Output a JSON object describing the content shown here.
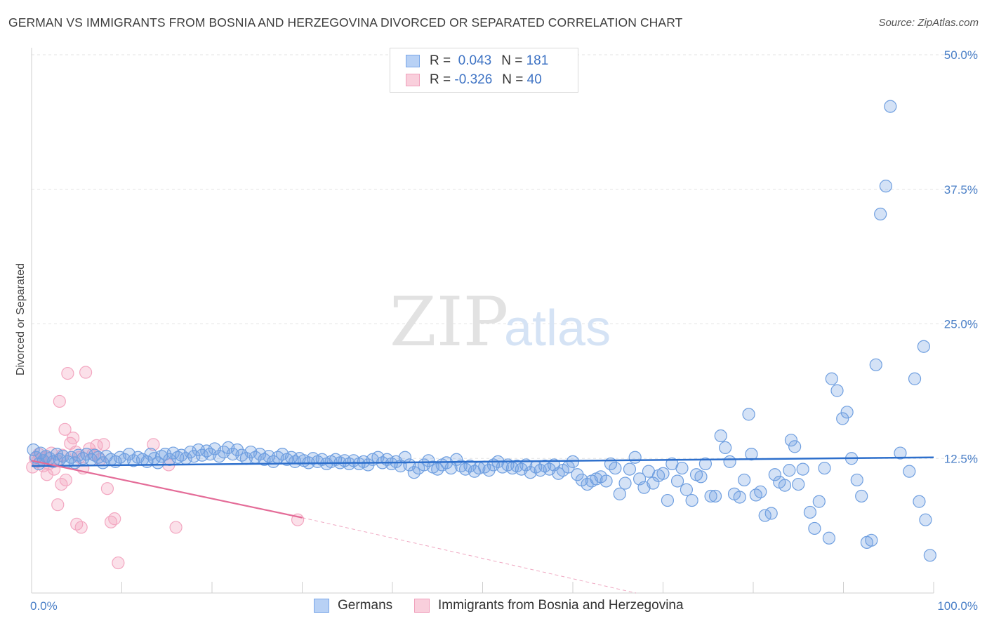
{
  "header": {
    "title": "GERMAN VS IMMIGRANTS FROM BOSNIA AND HERZEGOVINA DIVORCED OR SEPARATED CORRELATION CHART",
    "source": "Source: ZipAtlas.com"
  },
  "watermark": {
    "zip": "ZIP",
    "atlas": "atlas"
  },
  "legend": {
    "rows": [
      {
        "r_label": "R =",
        "r_value": "0.043",
        "n_label": "N =",
        "n_value": "181",
        "color": "#7aa7e8",
        "fill": "#b8d1f5"
      },
      {
        "r_label": "R =",
        "r_value": "-0.326",
        "n_label": "N =",
        "n_value": "40",
        "color": "#f0a0bc",
        "fill": "#f9cfdc"
      }
    ]
  },
  "bottom_legend": {
    "germans": "Germans",
    "bosnia": "Immigrants from Bosnia and Herzegovina"
  },
  "chart_data": {
    "type": "scatter",
    "title": "GERMAN VS IMMIGRANTS FROM BOSNIA AND HERZEGOVINA DIVORCED OR SEPARATED CORRELATION CHART",
    "xlabel": "",
    "ylabel": "Divorced or Separated",
    "xlim": [
      0,
      100
    ],
    "ylim": [
      0,
      50
    ],
    "x_tick_labels": [
      "0.0%",
      "100.0%"
    ],
    "y_ticks": [
      12.5,
      25.0,
      37.5,
      50.0
    ],
    "y_tick_labels": [
      "12.5%",
      "25.0%",
      "37.5%",
      "50.0%"
    ],
    "grid": true,
    "colors": {
      "germans": "#6f9fe0",
      "germans_line": "#2d6fcc",
      "bosnia": "#f3a7c1",
      "bosnia_line": "#e46c98"
    },
    "series": [
      {
        "name": "Germans",
        "points": [
          [
            0.2,
            13.3
          ],
          [
            0.5,
            12.6
          ],
          [
            0.8,
            12.0
          ],
          [
            1.0,
            13.0
          ],
          [
            1.3,
            12.3
          ],
          [
            1.6,
            12.7
          ],
          [
            2.0,
            12.5
          ],
          [
            2.4,
            12.2
          ],
          [
            2.8,
            12.9
          ],
          [
            3.1,
            12.4
          ],
          [
            3.5,
            12.7
          ],
          [
            4.0,
            12.2
          ],
          [
            4.4,
            12.6
          ],
          [
            4.8,
            12.1
          ],
          [
            5.2,
            12.8
          ],
          [
            5.7,
            12.5
          ],
          [
            6.1,
            12.9
          ],
          [
            6.6,
            12.4
          ],
          [
            7.0,
            12.8
          ],
          [
            7.4,
            12.6
          ],
          [
            7.9,
            12.1
          ],
          [
            8.3,
            12.7
          ],
          [
            8.8,
            12.4
          ],
          [
            9.3,
            12.2
          ],
          [
            9.8,
            12.6
          ],
          [
            10.3,
            12.4
          ],
          [
            10.8,
            12.9
          ],
          [
            11.3,
            12.3
          ],
          [
            11.8,
            12.6
          ],
          [
            12.3,
            12.4
          ],
          [
            12.8,
            12.2
          ],
          [
            13.2,
            12.9
          ],
          [
            13.6,
            12.5
          ],
          [
            14.0,
            12.1
          ],
          [
            14.4,
            12.7
          ],
          [
            14.8,
            12.9
          ],
          [
            15.3,
            12.4
          ],
          [
            15.7,
            13.0
          ],
          [
            16.2,
            12.6
          ],
          [
            16.6,
            12.8
          ],
          [
            17.1,
            12.5
          ],
          [
            17.6,
            13.1
          ],
          [
            18.0,
            12.7
          ],
          [
            18.5,
            13.3
          ],
          [
            18.9,
            12.8
          ],
          [
            19.4,
            13.2
          ],
          [
            19.8,
            12.9
          ],
          [
            20.3,
            13.4
          ],
          [
            20.8,
            12.7
          ],
          [
            21.3,
            13.1
          ],
          [
            21.8,
            13.5
          ],
          [
            22.3,
            12.9
          ],
          [
            22.8,
            13.3
          ],
          [
            23.3,
            12.8
          ],
          [
            23.8,
            12.5
          ],
          [
            24.3,
            13.1
          ],
          [
            24.8,
            12.6
          ],
          [
            25.3,
            12.9
          ],
          [
            25.8,
            12.4
          ],
          [
            26.3,
            12.7
          ],
          [
            26.8,
            12.2
          ],
          [
            27.3,
            12.6
          ],
          [
            27.8,
            12.9
          ],
          [
            28.3,
            12.4
          ],
          [
            28.8,
            12.6
          ],
          [
            29.2,
            12.2
          ],
          [
            29.7,
            12.5
          ],
          [
            30.2,
            12.3
          ],
          [
            30.7,
            12.1
          ],
          [
            31.2,
            12.5
          ],
          [
            31.7,
            12.2
          ],
          [
            32.2,
            12.4
          ],
          [
            32.7,
            12.0
          ],
          [
            33.2,
            12.2
          ],
          [
            33.7,
            12.4
          ],
          [
            34.2,
            12.1
          ],
          [
            34.7,
            12.3
          ],
          [
            35.2,
            12.0
          ],
          [
            35.7,
            12.3
          ],
          [
            36.3,
            12.0
          ],
          [
            36.8,
            12.2
          ],
          [
            37.3,
            11.9
          ],
          [
            37.8,
            12.4
          ],
          [
            38.4,
            12.6
          ],
          [
            38.9,
            12.1
          ],
          [
            39.4,
            12.4
          ],
          [
            39.9,
            12.0
          ],
          [
            40.4,
            12.2
          ],
          [
            40.9,
            11.8
          ],
          [
            41.4,
            12.6
          ],
          [
            41.9,
            11.9
          ],
          [
            42.4,
            11.2
          ],
          [
            42.9,
            11.6
          ],
          [
            43.5,
            11.9
          ],
          [
            44.0,
            12.3
          ],
          [
            44.5,
            11.7
          ],
          [
            45.0,
            11.5
          ],
          [
            45.5,
            11.9
          ],
          [
            46.0,
            12.1
          ],
          [
            46.5,
            11.6
          ],
          [
            47.1,
            12.4
          ],
          [
            47.6,
            11.8
          ],
          [
            48.1,
            11.5
          ],
          [
            48.6,
            11.8
          ],
          [
            49.1,
            11.3
          ],
          [
            49.6,
            11.6
          ],
          [
            50.2,
            11.7
          ],
          [
            50.7,
            11.4
          ],
          [
            51.2,
            11.9
          ],
          [
            51.7,
            12.2
          ],
          [
            52.2,
            11.7
          ],
          [
            52.8,
            11.9
          ],
          [
            53.3,
            11.6
          ],
          [
            53.8,
            11.8
          ],
          [
            54.3,
            11.5
          ],
          [
            54.8,
            11.9
          ],
          [
            55.3,
            11.2
          ],
          [
            55.9,
            11.7
          ],
          [
            56.4,
            11.4
          ],
          [
            56.9,
            11.8
          ],
          [
            57.4,
            11.5
          ],
          [
            57.9,
            11.9
          ],
          [
            58.4,
            11.1
          ],
          [
            58.9,
            11.4
          ],
          [
            59.5,
            11.7
          ],
          [
            60.0,
            12.2
          ],
          [
            60.5,
            11.0
          ],
          [
            61.0,
            10.5
          ],
          [
            61.6,
            10.1
          ],
          [
            62.1,
            10.4
          ],
          [
            62.6,
            10.6
          ],
          [
            63.1,
            10.8
          ],
          [
            63.7,
            10.4
          ],
          [
            64.2,
            12.0
          ],
          [
            64.7,
            11.6
          ],
          [
            65.2,
            9.2
          ],
          [
            65.8,
            10.2
          ],
          [
            66.3,
            11.5
          ],
          [
            66.9,
            12.6
          ],
          [
            67.4,
            10.6
          ],
          [
            67.9,
            9.8
          ],
          [
            68.4,
            11.3
          ],
          [
            68.9,
            10.2
          ],
          [
            69.5,
            10.9
          ],
          [
            70.0,
            11.1
          ],
          [
            70.5,
            8.6
          ],
          [
            71.0,
            12.0
          ],
          [
            71.6,
            10.4
          ],
          [
            72.1,
            11.6
          ],
          [
            72.6,
            9.6
          ],
          [
            73.2,
            8.6
          ],
          [
            73.7,
            11.0
          ],
          [
            74.2,
            10.8
          ],
          [
            74.7,
            12.0
          ],
          [
            75.3,
            9.0
          ],
          [
            75.8,
            9.0
          ],
          [
            76.4,
            14.6
          ],
          [
            76.9,
            13.5
          ],
          [
            77.4,
            12.2
          ],
          [
            77.9,
            9.2
          ],
          [
            78.5,
            8.9
          ],
          [
            79.0,
            10.5
          ],
          [
            79.5,
            16.6
          ],
          [
            79.8,
            12.9
          ],
          [
            80.3,
            9.1
          ],
          [
            80.8,
            9.4
          ],
          [
            81.3,
            7.2
          ],
          [
            82.0,
            7.4
          ],
          [
            82.4,
            11.0
          ],
          [
            82.9,
            10.3
          ],
          [
            83.5,
            10.0
          ],
          [
            84.0,
            11.4
          ],
          [
            84.6,
            13.6
          ],
          [
            84.2,
            14.2
          ],
          [
            85.0,
            10.1
          ],
          [
            85.5,
            11.5
          ],
          [
            86.3,
            7.5
          ],
          [
            86.8,
            6.0
          ],
          [
            87.3,
            8.5
          ],
          [
            87.9,
            11.6
          ],
          [
            88.4,
            5.1
          ],
          [
            88.7,
            19.9
          ],
          [
            89.3,
            18.8
          ],
          [
            89.9,
            16.2
          ],
          [
            90.4,
            16.8
          ],
          [
            90.9,
            12.5
          ],
          [
            91.5,
            10.5
          ],
          [
            92.0,
            9.0
          ],
          [
            92.6,
            4.7
          ],
          [
            93.1,
            4.9
          ],
          [
            93.6,
            21.2
          ],
          [
            94.1,
            35.2
          ],
          [
            94.7,
            37.8
          ],
          [
            95.2,
            45.2
          ],
          [
            96.3,
            13.0
          ],
          [
            97.3,
            11.3
          ],
          [
            97.9,
            19.9
          ],
          [
            98.4,
            8.5
          ],
          [
            99.1,
            6.8
          ],
          [
            99.6,
            3.5
          ],
          [
            98.9,
            22.9
          ]
        ],
        "trendline": {
          "x": [
            0,
            100
          ],
          "y": [
            11.8,
            12.6
          ]
        }
      },
      {
        "name": "Immigrants from Bosnia and Herzegovina",
        "points": [
          [
            0.1,
            11.7
          ],
          [
            0.4,
            12.5
          ],
          [
            0.6,
            12.2
          ],
          [
            0.8,
            12.9
          ],
          [
            1.0,
            12.4
          ],
          [
            1.3,
            11.8
          ],
          [
            1.6,
            12.6
          ],
          [
            1.9,
            12.0
          ],
          [
            2.2,
            13.0
          ],
          [
            2.5,
            11.5
          ],
          [
            2.8,
            12.3
          ],
          [
            3.1,
            17.8
          ],
          [
            3.4,
            12.8
          ],
          [
            3.7,
            15.2
          ],
          [
            4.0,
            20.4
          ],
          [
            4.3,
            13.9
          ],
          [
            4.6,
            14.4
          ],
          [
            4.9,
            13.1
          ],
          [
            5.3,
            12.6
          ],
          [
            5.7,
            11.6
          ],
          [
            6.0,
            20.5
          ],
          [
            6.4,
            13.4
          ],
          [
            6.8,
            12.9
          ],
          [
            7.2,
            13.7
          ],
          [
            7.6,
            12.4
          ],
          [
            8.0,
            13.8
          ],
          [
            8.4,
            9.7
          ],
          [
            8.8,
            6.6
          ],
          [
            9.2,
            6.9
          ],
          [
            9.6,
            2.8
          ],
          [
            3.3,
            10.1
          ],
          [
            3.8,
            10.5
          ],
          [
            2.9,
            8.2
          ],
          [
            1.7,
            11.0
          ],
          [
            5.0,
            6.4
          ],
          [
            5.5,
            6.1
          ],
          [
            13.5,
            13.8
          ],
          [
            15.2,
            11.9
          ],
          [
            16.0,
            6.1
          ],
          [
            29.5,
            6.8
          ]
        ],
        "trendline": {
          "x": [
            0,
            30
          ],
          "y": [
            12.3,
            7.0
          ]
        },
        "trendline_extension": {
          "x": [
            30,
            67
          ],
          "y": [
            7.0,
            0.0
          ]
        }
      }
    ]
  }
}
